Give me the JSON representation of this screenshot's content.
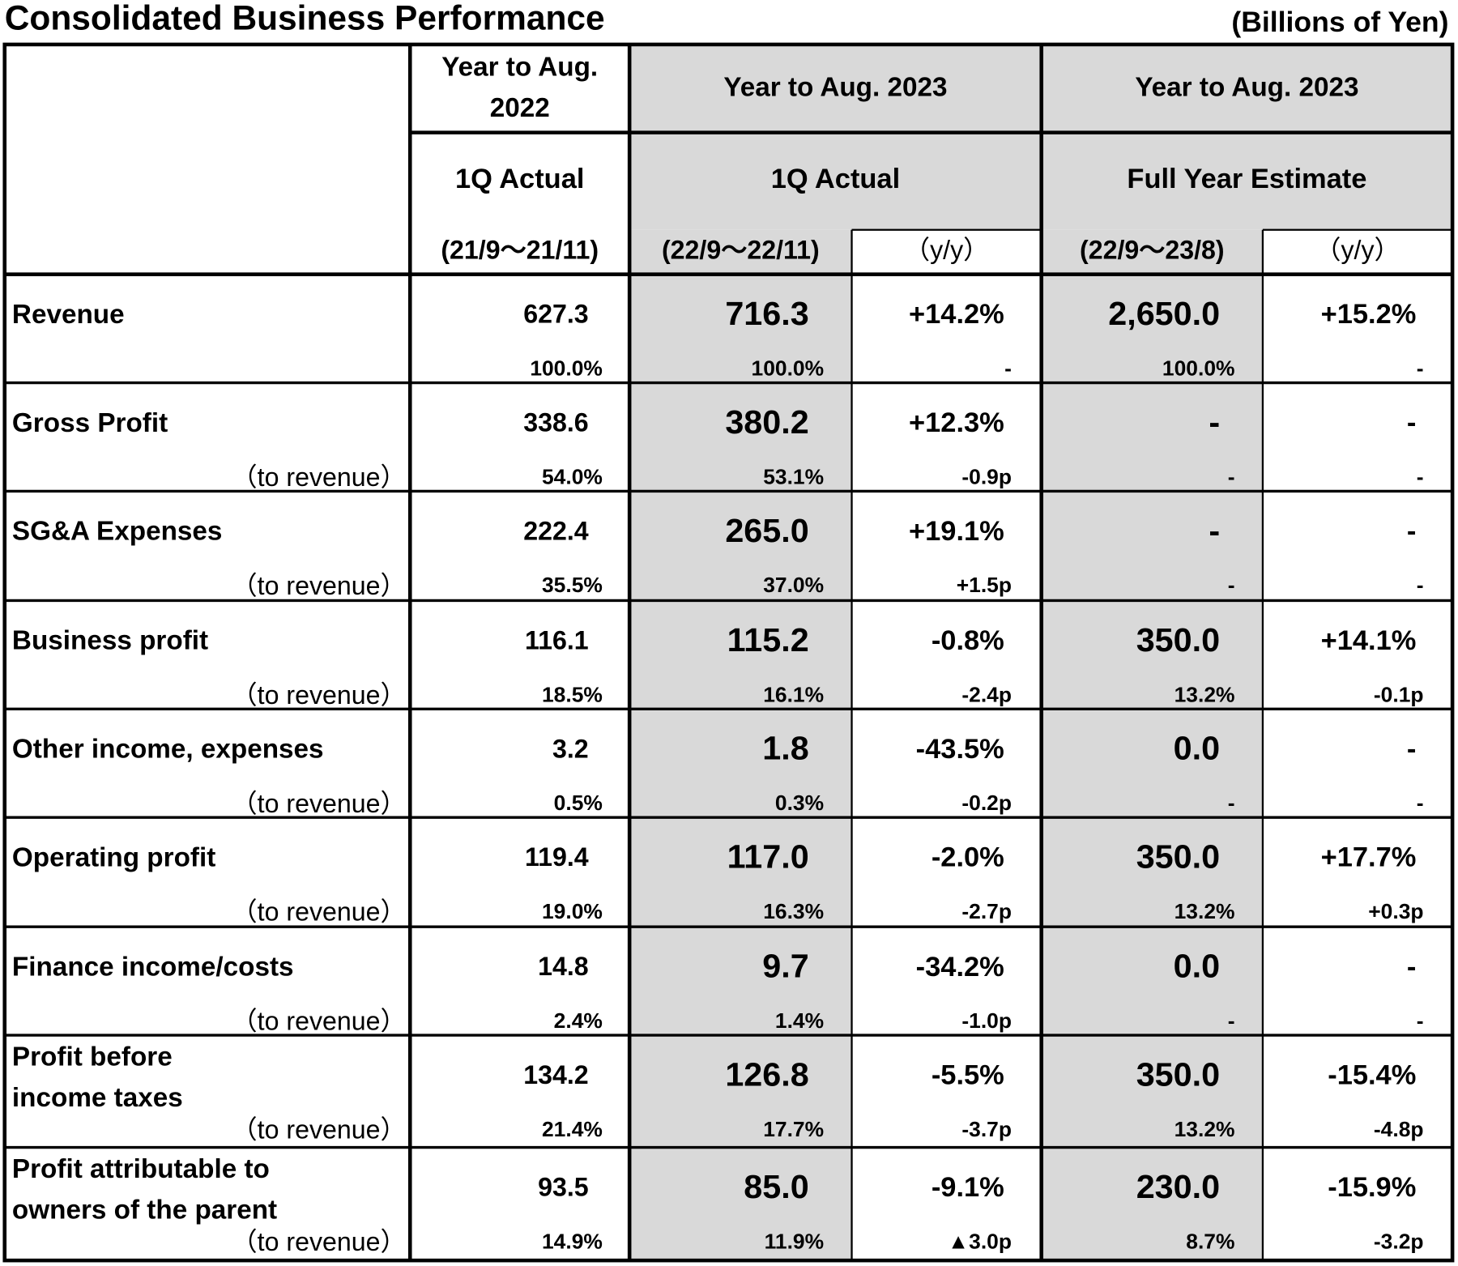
{
  "header": {
    "title": "Consolidated Business Performance",
    "unit": "(Billions of Yen)"
  },
  "column_headers": {
    "years": [
      [
        "Year to Aug.",
        "2022"
      ],
      [
        "Year to Aug. 2023"
      ],
      [
        "Year to Aug. 2023"
      ]
    ],
    "kinds": [
      "1Q Actual",
      "1Q Actual",
      "Full Year Estimate"
    ],
    "periods": [
      "(21/9～21/11)",
      "(22/9～22/11)",
      "（y/y）",
      "(22/9～23/8)",
      "（y/y）"
    ]
  },
  "table": {
    "rows": [
      {
        "label": [
          "Revenue"
        ],
        "values": [
          "627.3",
          "716.3",
          "+14.2%",
          "2,650.0",
          "+15.2%"
        ],
        "ratios": [
          "100.0%",
          "100.0%",
          "-",
          "100.0%",
          "-"
        ]
      },
      {
        "label": [
          "Gross Profit"
        ],
        "sublabel": "（to revenue）",
        "values": [
          "338.6",
          "380.2",
          "+12.3%",
          "-",
          "-"
        ],
        "ratios": [
          "54.0%",
          "53.1%",
          "-0.9p",
          "-",
          "-"
        ]
      },
      {
        "label": [
          "SG&A Expenses"
        ],
        "sublabel": "（to revenue）",
        "values": [
          "222.4",
          "265.0",
          "+19.1%",
          "-",
          "-"
        ],
        "ratios": [
          "35.5%",
          "37.0%",
          "+1.5p",
          "-",
          "-"
        ]
      },
      {
        "label": [
          "Business profit"
        ],
        "sublabel": "（to revenue）",
        "values": [
          "116.1",
          "115.2",
          "-0.8%",
          "350.0",
          "+14.1%"
        ],
        "ratios": [
          "18.5%",
          "16.1%",
          "-2.4p",
          "13.2%",
          "-0.1p"
        ]
      },
      {
        "label": [
          "Other income, expenses"
        ],
        "sublabel": "（to revenue）",
        "values": [
          "3.2",
          "1.8",
          "-43.5%",
          "0.0",
          "-"
        ],
        "ratios": [
          "0.5%",
          "0.3%",
          "-0.2p",
          "-",
          "-"
        ]
      },
      {
        "label": [
          "Operating profit"
        ],
        "sublabel": "（to revenue）",
        "values": [
          "119.4",
          "117.0",
          "-2.0%",
          "350.0",
          "+17.7%"
        ],
        "ratios": [
          "19.0%",
          "16.3%",
          "-2.7p",
          "13.2%",
          "+0.3p"
        ]
      },
      {
        "label": [
          "Finance income/costs"
        ],
        "sublabel": "（to revenue）",
        "values": [
          "14.8",
          "9.7",
          "-34.2%",
          "0.0",
          "-"
        ],
        "ratios": [
          "2.4%",
          "1.4%",
          "-1.0p",
          "-",
          "-"
        ]
      },
      {
        "label": [
          "Profit before",
          "income taxes"
        ],
        "sublabel": "（to revenue）",
        "values": [
          "134.2",
          "126.8",
          "-5.5%",
          "350.0",
          "-15.4%"
        ],
        "ratios": [
          "21.4%",
          "17.7%",
          "-3.7p",
          "13.2%",
          "-4.8p"
        ]
      },
      {
        "label": [
          "Profit attributable to",
          "owners of the parent"
        ],
        "sublabel": "（to revenue）",
        "values": [
          "93.5",
          "85.0",
          "-9.1%",
          "230.0",
          "-15.9%"
        ],
        "ratios": [
          "14.9%",
          "11.9%",
          "▲3.0p",
          "8.7%",
          "-3.2p"
        ]
      }
    ]
  }
}
